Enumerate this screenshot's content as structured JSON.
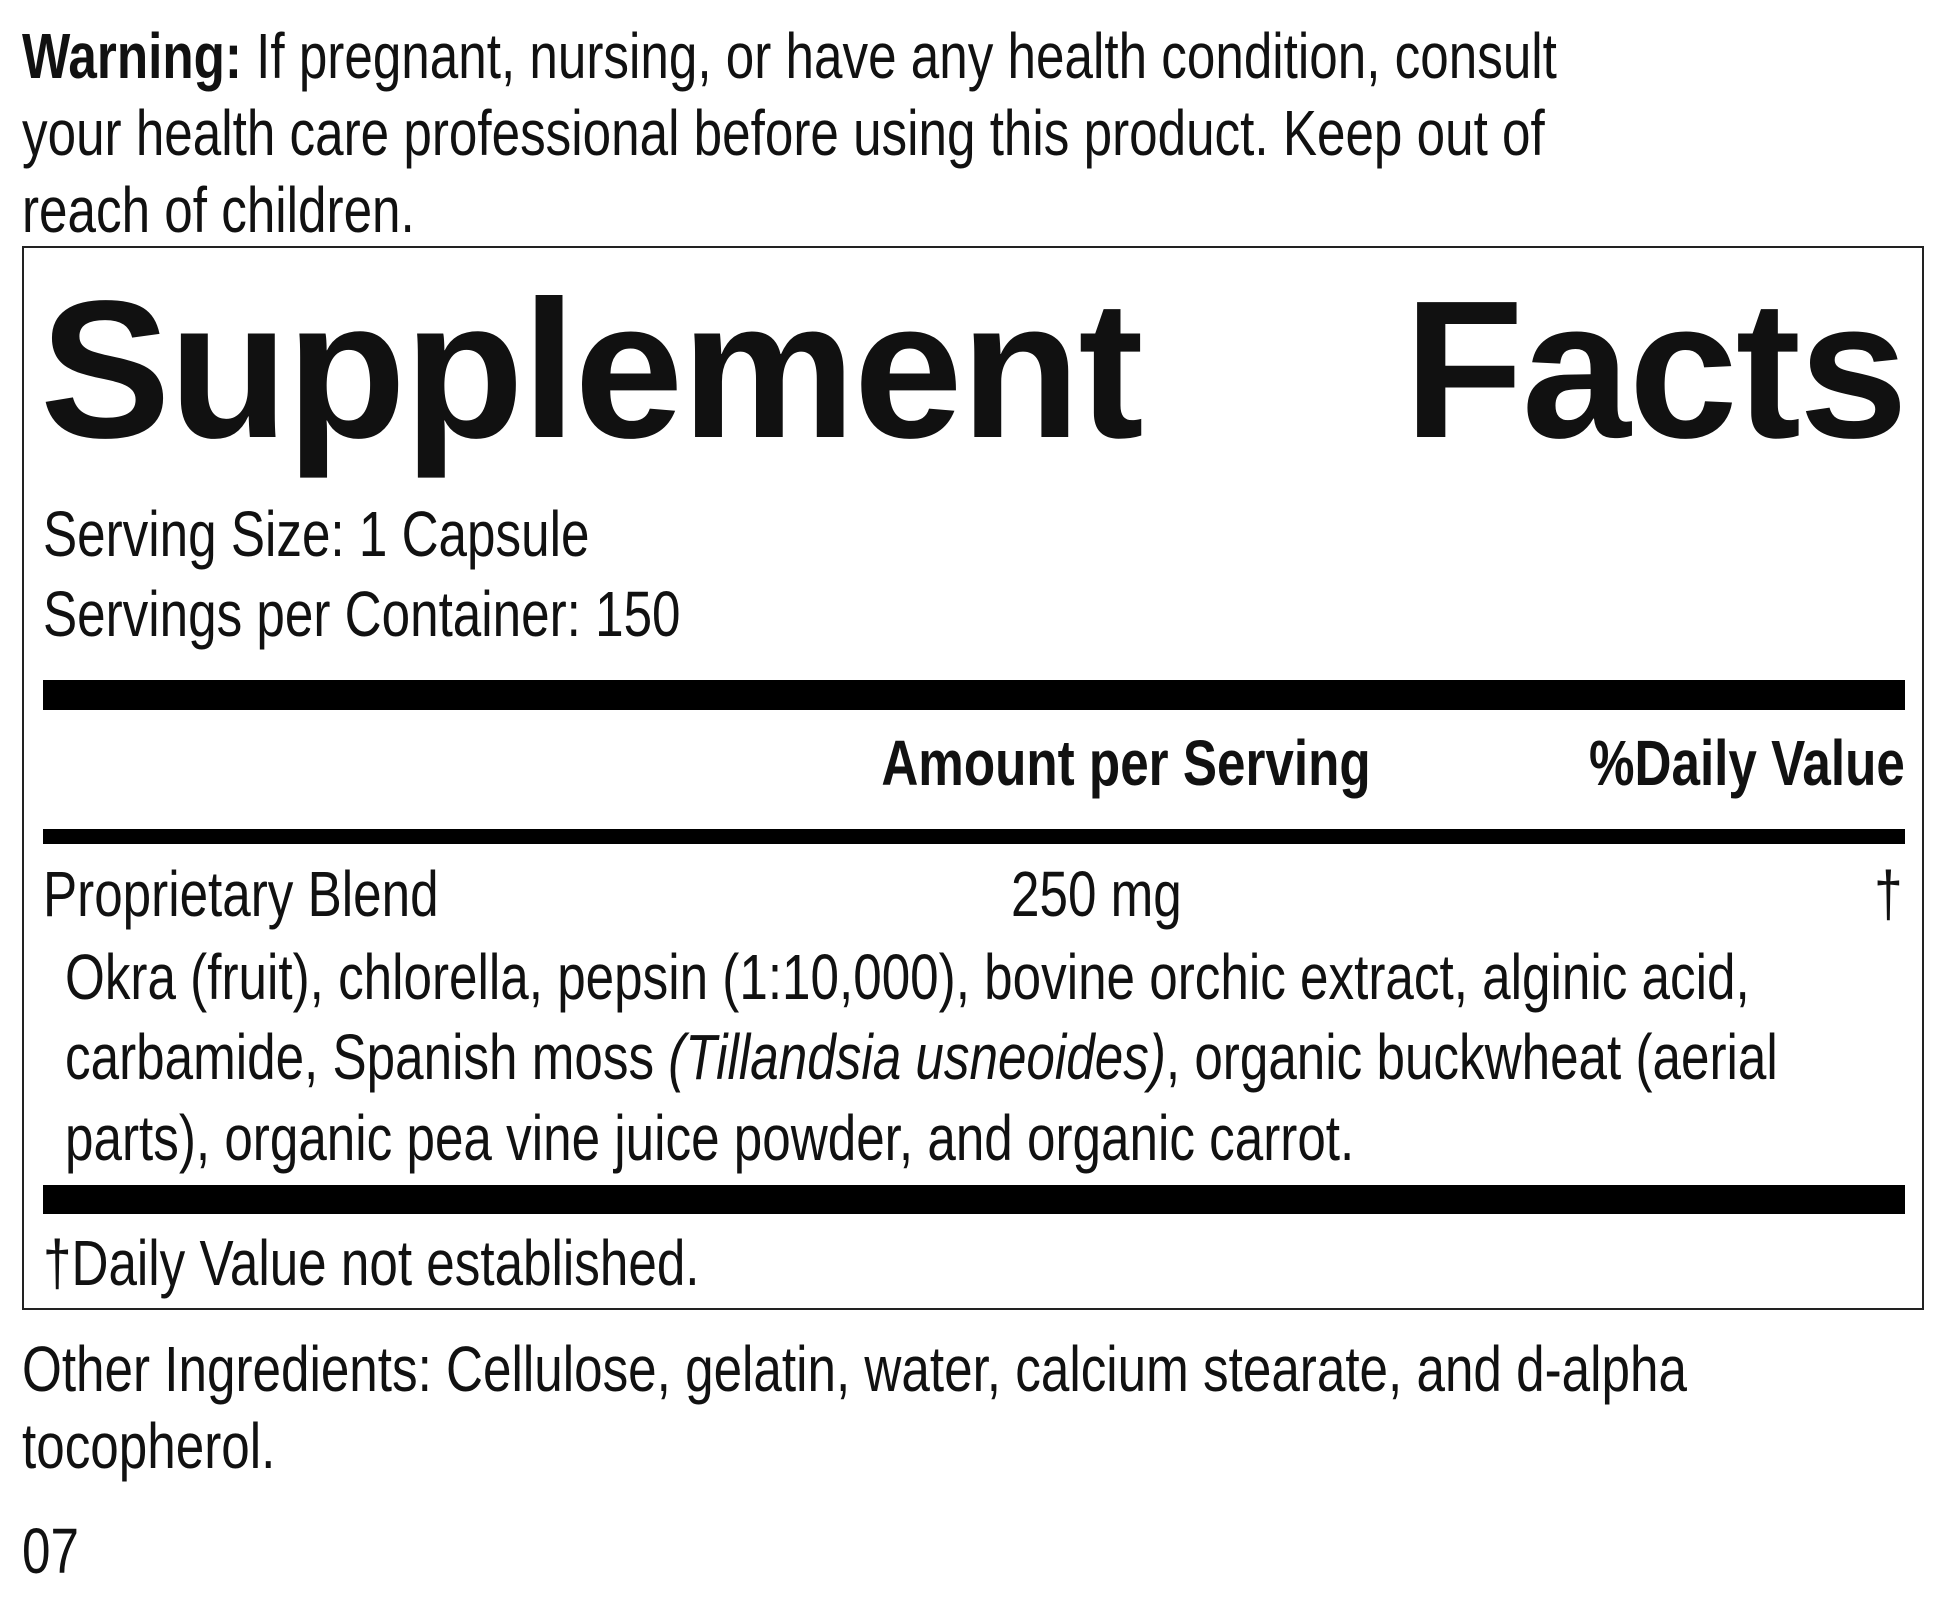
{
  "warning": {
    "label": "Warning:",
    "lines": [
      " If pregnant, nursing, or have any health condition, consult",
      "your health care professional before using this product. Keep out of",
      "reach of children."
    ]
  },
  "facts": {
    "title_left": "Supplement",
    "title_right": "Facts",
    "serving_size": "Serving Size: 1 Capsule",
    "servings_per_container": "Servings per Container: 150",
    "col_amount": "Amount per Serving",
    "col_dv": "%Daily Value",
    "row": {
      "name": "Proprietary Blend",
      "amount": "250 mg",
      "dv": "†"
    },
    "ingredients": {
      "line1": "Okra (fruit), chlorella, pepsin (1:10,000), bovine orchic extract, alginic acid,",
      "line2_a": "carbamide, Spanish moss ",
      "line2_italic": "(Tillandsia usneoides)",
      "line2_b": ", organic buckwheat (aerial",
      "line3": "parts), organic pea vine juice powder, and organic carrot."
    },
    "footnote": "†Daily Value not established."
  },
  "other_ingredients": [
    "Other Ingredients: Cellulose, gelatin, water, calcium stearate, and d-alpha",
    "tocopherol."
  ],
  "code": "07"
}
